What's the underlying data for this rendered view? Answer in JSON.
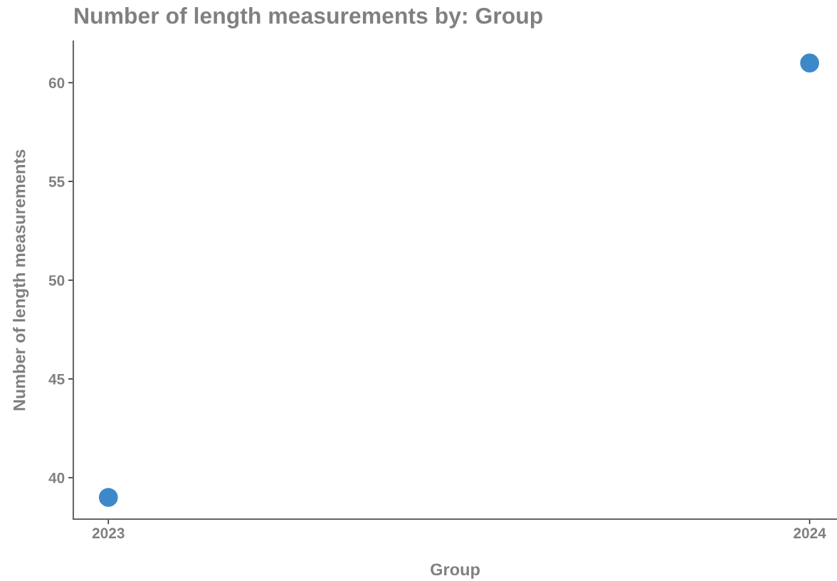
{
  "chart_data": {
    "type": "scatter",
    "title": "Number of length measurements by: Group",
    "xlabel": "Group",
    "ylabel": "Number of length measurements",
    "categories": [
      "2023",
      "2024"
    ],
    "series": [
      {
        "color": "#3d88c9",
        "values": [
          39,
          61
        ]
      }
    ],
    "ylim": [
      37.9,
      62.1
    ],
    "yticks": [
      40,
      45,
      50,
      55,
      60
    ],
    "grid": false,
    "legend": false
  }
}
